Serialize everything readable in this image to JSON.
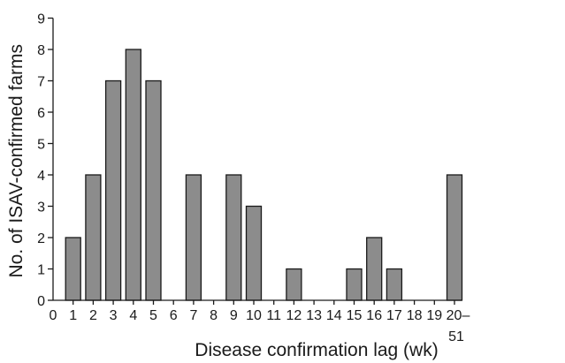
{
  "chart_data": {
    "type": "bar",
    "title": "",
    "xlabel": "Disease confirmation lag (wk)",
    "ylabel": "No. of ISAV-confirmed farms",
    "ylim": [
      0,
      9
    ],
    "yticks": [
      "0",
      "1",
      "2",
      "3",
      "4",
      "5",
      "6",
      "7",
      "8",
      "9"
    ],
    "x_tick_labels": [
      "0",
      "1",
      "2",
      "3",
      "4",
      "5",
      "6",
      "7",
      "8",
      "9",
      "10",
      "11",
      "12",
      "13",
      "14",
      "15",
      "16",
      "17",
      "18",
      "19",
      "20–",
      "51"
    ],
    "categories": [
      "1",
      "2",
      "3",
      "4",
      "5",
      "7",
      "9",
      "10",
      "12",
      "15",
      "16",
      "17",
      "20–51"
    ],
    "values": [
      2,
      4,
      7,
      8,
      7,
      4,
      4,
      3,
      1,
      1,
      2,
      1,
      4
    ],
    "grid": false,
    "colors": {
      "bar_fill": "#8c8c8c",
      "bar_stroke": "#1a1a1a",
      "axis": "#1a1a1a",
      "text": "#1a1a1a"
    }
  }
}
